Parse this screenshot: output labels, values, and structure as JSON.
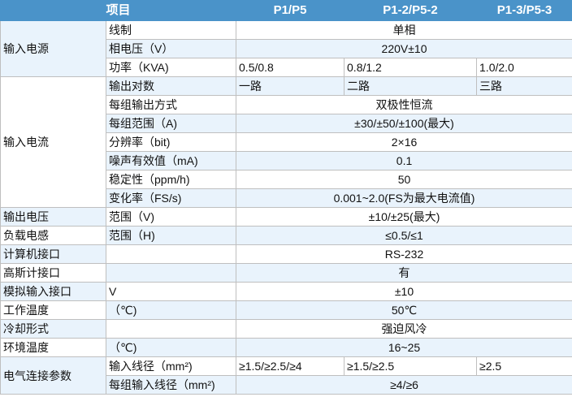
{
  "header": {
    "item": "项目",
    "p1": "P1/P5",
    "p2": "P1-2/P5-2",
    "p3": "P1-3/P5-3"
  },
  "rows": {
    "input_power": {
      "group": "输入电源",
      "wiring_label": "线制",
      "wiring_value": "单相",
      "phase_voltage_label": "相电压（V）",
      "phase_voltage_value": "220V±10",
      "power_label": "功率（KVA)",
      "power_p1": "0.5/0.8",
      "power_p2": "0.8/1.2",
      "power_p3": "1.0/2.0"
    },
    "input_current": {
      "group": "输入电流",
      "outputs_label": "输出对数",
      "outputs_p1": "一路",
      "outputs_p2": "二路",
      "outputs_p3": "三路",
      "mode_label": "每组输出方式",
      "mode_value": "双极性恒流",
      "range_label": "每组范围（A)",
      "range_value": "±30/±50/±100(最大)",
      "resolution_label": "分辨率（bit)",
      "resolution_value": "2×16",
      "noise_label": "噪声有效值（mA)",
      "noise_value": "0.1",
      "stability_label": "稳定性（ppm/h)",
      "stability_value": "50",
      "slew_label": "变化率（FS/s)",
      "slew_value": "0.001~2.0(FS为最大电流值)"
    },
    "output_voltage": {
      "group": "输出电压",
      "label": "范围（V)",
      "value": "±10/±25(最大)"
    },
    "load_inductance": {
      "group": "负载电感",
      "label": "范围（H)",
      "value": "≤0.5/≤1"
    },
    "computer_interface": {
      "group": "计算机接口",
      "value": "RS-232"
    },
    "gauss_interface": {
      "group": "高斯计接口",
      "value": "有"
    },
    "analog_input": {
      "group": "模拟输入接口",
      "label": "V",
      "value": "±10"
    },
    "operating_temp": {
      "group": "工作温度",
      "label": "（℃)",
      "value": "50℃"
    },
    "cooling": {
      "group": "冷却形式",
      "value": "强迫风冷"
    },
    "ambient_temp": {
      "group": "环境温度",
      "label": "（℃)",
      "value": "16~25"
    },
    "electrical": {
      "group": "电气连接参数",
      "wire_label": "输入线径（mm²)",
      "wire_p1": "≥1.5/≥2.5/≥4",
      "wire_p2": "≥1.5/≥2.5",
      "wire_p3": "≥2.5",
      "group_wire_label": "每组输入线径（mm²)",
      "group_wire_value": "≥4/≥6"
    }
  }
}
